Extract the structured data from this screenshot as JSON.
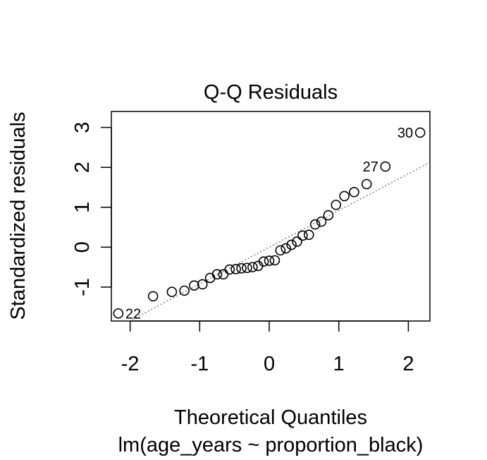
{
  "chart_data": {
    "type": "scatter",
    "title": "Q-Q Residuals",
    "xlabel": "Theoretical Quantiles",
    "sublabel": "lm(age_years ~ proportion_black)",
    "ylabel": "Standardized residuals",
    "xlim": [
      -2.27,
      2.31
    ],
    "ylim": [
      -1.85,
      3.4
    ],
    "xticks": [
      -2,
      -1,
      0,
      1,
      2
    ],
    "xtick_labels": [
      "-2",
      "-1",
      "0",
      "1",
      "2"
    ],
    "yticks": [
      -1,
      0,
      1,
      2,
      3
    ],
    "ytick_labels": [
      "-1",
      "0",
      "1",
      "2",
      "3"
    ],
    "grid": false,
    "reference_line": {
      "slope": 0.92,
      "intercept": 0.0,
      "style": "dotted",
      "color": "#808080"
    },
    "points": [
      {
        "x": -2.17,
        "y": -1.66
      },
      {
        "x": -1.67,
        "y": -1.23
      },
      {
        "x": -1.4,
        "y": -1.12
      },
      {
        "x": -1.22,
        "y": -1.09
      },
      {
        "x": -1.08,
        "y": -0.96
      },
      {
        "x": -0.96,
        "y": -0.93
      },
      {
        "x": -0.85,
        "y": -0.77
      },
      {
        "x": -0.75,
        "y": -0.68
      },
      {
        "x": -0.66,
        "y": -0.68
      },
      {
        "x": -0.57,
        "y": -0.56
      },
      {
        "x": -0.48,
        "y": -0.55
      },
      {
        "x": -0.4,
        "y": -0.53
      },
      {
        "x": -0.32,
        "y": -0.52
      },
      {
        "x": -0.24,
        "y": -0.5
      },
      {
        "x": -0.16,
        "y": -0.47
      },
      {
        "x": -0.08,
        "y": -0.36
      },
      {
        "x": 0.0,
        "y": -0.34
      },
      {
        "x": 0.08,
        "y": -0.33
      },
      {
        "x": 0.16,
        "y": -0.08
      },
      {
        "x": 0.24,
        "y": -0.03
      },
      {
        "x": 0.32,
        "y": 0.06
      },
      {
        "x": 0.4,
        "y": 0.14
      },
      {
        "x": 0.48,
        "y": 0.29
      },
      {
        "x": 0.57,
        "y": 0.31
      },
      {
        "x": 0.66,
        "y": 0.57
      },
      {
        "x": 0.75,
        "y": 0.64
      },
      {
        "x": 0.85,
        "y": 0.8
      },
      {
        "x": 0.96,
        "y": 1.06
      },
      {
        "x": 1.08,
        "y": 1.28
      },
      {
        "x": 1.22,
        "y": 1.38
      },
      {
        "x": 1.4,
        "y": 1.58
      },
      {
        "x": 1.67,
        "y": 2.02,
        "label": "27"
      },
      {
        "x": 2.17,
        "y": 2.87,
        "label": "30"
      }
    ],
    "extra_labels": [
      {
        "x": -2.17,
        "y": -1.66,
        "label": "22",
        "side": "right"
      }
    ]
  }
}
